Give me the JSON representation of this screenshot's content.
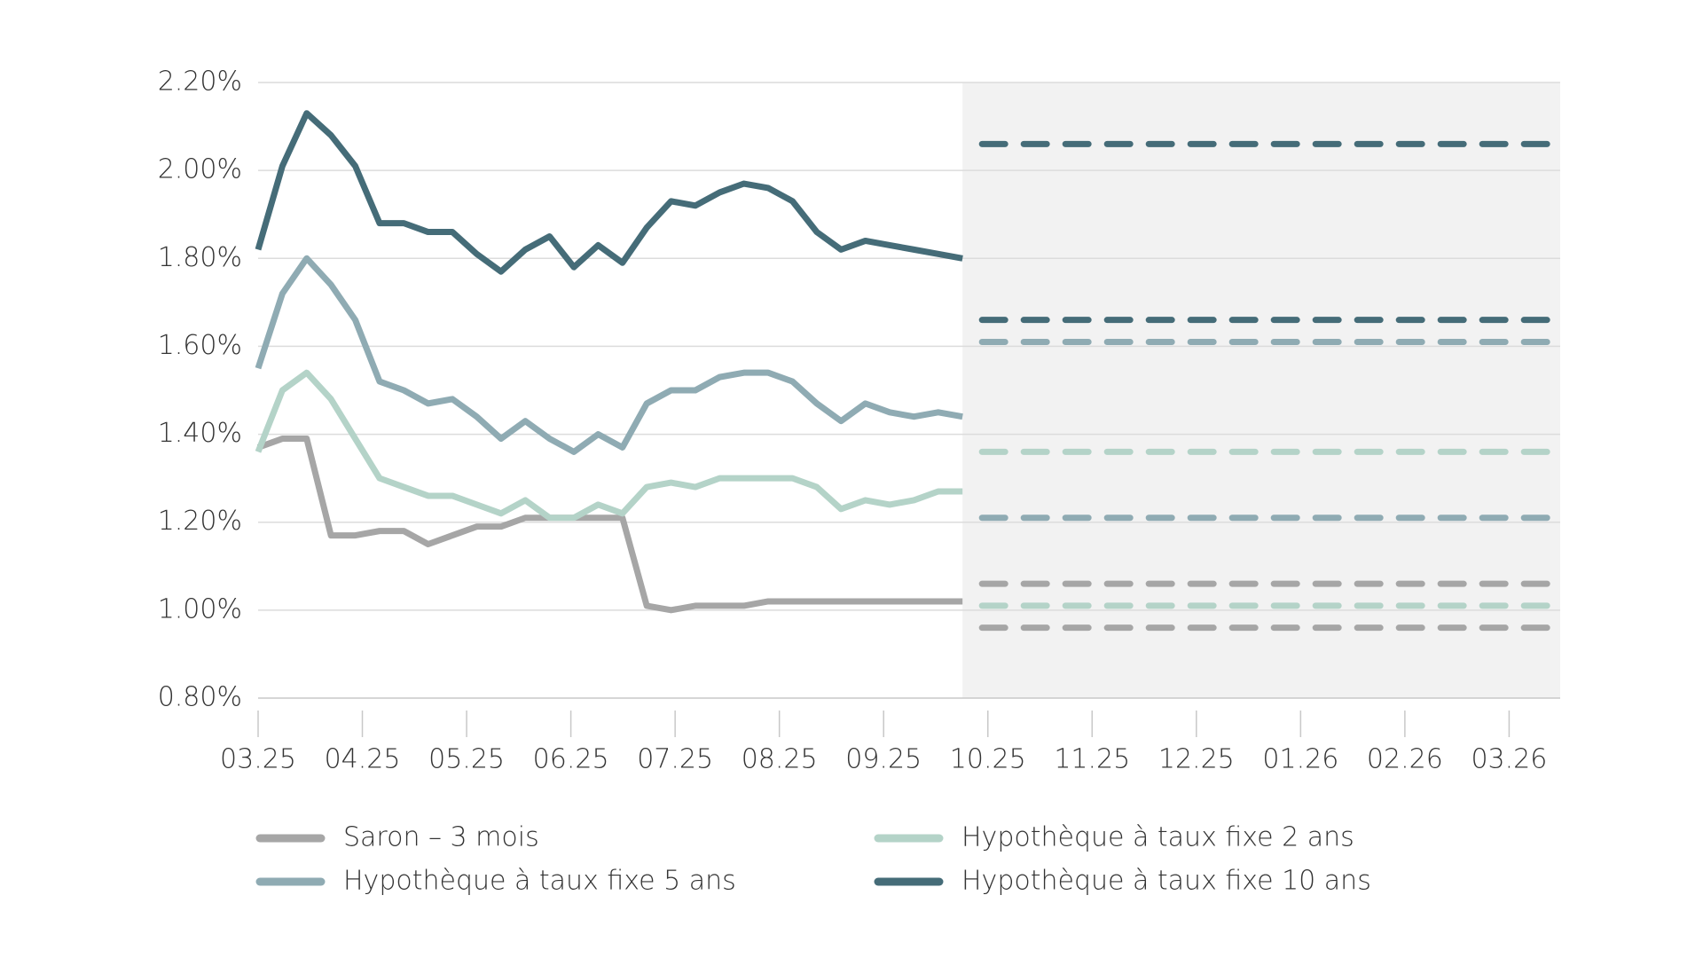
{
  "chart_data": {
    "type": "line",
    "x": [
      0,
      0.233,
      0.466,
      0.699,
      0.932,
      1.165,
      1.398,
      1.631,
      1.864,
      2.097,
      2.33,
      2.563,
      2.796,
      3.029,
      3.262,
      3.495,
      3.728,
      3.961,
      4.194,
      4.427,
      4.66,
      4.893,
      5.126,
      5.359,
      5.592,
      5.825,
      6.058,
      6.291,
      6.524,
      6.757
    ],
    "xlim": [
      0,
      12.49
    ],
    "xticks": [
      {
        "value": 0,
        "label": "03.25"
      },
      {
        "value": 1,
        "label": "04.25"
      },
      {
        "value": 2,
        "label": "05.25"
      },
      {
        "value": 3,
        "label": "06.25"
      },
      {
        "value": 4,
        "label": "07.25"
      },
      {
        "value": 5,
        "label": "08.25"
      },
      {
        "value": 6,
        "label": "09.25"
      },
      {
        "value": 7,
        "label": "10.25"
      },
      {
        "value": 8,
        "label": "11.25"
      },
      {
        "value": 9,
        "label": "12.25"
      },
      {
        "value": 10,
        "label": "01.26"
      },
      {
        "value": 11,
        "label": "02.26"
      },
      {
        "value": 12,
        "label": "03.26"
      }
    ],
    "ylim": [
      0.8,
      2.2
    ],
    "yticks": [
      {
        "value": 0.8,
        "label": "0.80%"
      },
      {
        "value": 1.0,
        "label": "1.00%"
      },
      {
        "value": 1.2,
        "label": "1.20%"
      },
      {
        "value": 1.4,
        "label": "1.40%"
      },
      {
        "value": 1.6,
        "label": "1.60%"
      },
      {
        "value": 1.8,
        "label": "1.80%"
      },
      {
        "value": 2.0,
        "label": "2.00%"
      },
      {
        "value": 2.2,
        "label": "2.20%"
      }
    ],
    "grid": true,
    "series": [
      {
        "name": "Saron – 3 mois",
        "color": "#a6a6a6",
        "forecast_range": [
          0.96,
          1.06
        ],
        "values": [
          1.37,
          1.39,
          1.39,
          1.17,
          1.17,
          1.18,
          1.18,
          1.15,
          1.17,
          1.19,
          1.19,
          1.21,
          1.21,
          1.21,
          1.21,
          1.21,
          1.01,
          1.0,
          1.01,
          1.01,
          1.01,
          1.02,
          1.02,
          1.02,
          1.02,
          1.02,
          1.02,
          1.02,
          1.02,
          1.02
        ]
      },
      {
        "name": "Hypothèque à taux fixe 2 ans",
        "color": "#b4d3c8",
        "forecast_range": [
          1.01,
          1.36
        ],
        "values": [
          1.36,
          1.5,
          1.54,
          1.48,
          1.39,
          1.3,
          1.28,
          1.26,
          1.26,
          1.24,
          1.22,
          1.25,
          1.21,
          1.21,
          1.24,
          1.22,
          1.28,
          1.29,
          1.28,
          1.3,
          1.3,
          1.3,
          1.3,
          1.28,
          1.23,
          1.25,
          1.24,
          1.25,
          1.27,
          1.27
        ]
      },
      {
        "name": "Hypothèque à taux fixe 5 ans",
        "color": "#8fabb3",
        "forecast_range": [
          1.21,
          1.61
        ],
        "values": [
          1.55,
          1.72,
          1.8,
          1.74,
          1.66,
          1.52,
          1.5,
          1.47,
          1.48,
          1.44,
          1.39,
          1.43,
          1.39,
          1.36,
          1.4,
          1.37,
          1.47,
          1.5,
          1.5,
          1.53,
          1.54,
          1.54,
          1.52,
          1.47,
          1.43,
          1.47,
          1.45,
          1.44,
          1.45,
          1.44
        ]
      },
      {
        "name": "Hypothèque à taux fixe 10 ans",
        "color": "#456c78",
        "forecast_range": [
          1.66,
          2.06
        ],
        "values": [
          1.82,
          2.01,
          2.13,
          2.08,
          2.01,
          1.88,
          1.88,
          1.86,
          1.86,
          1.81,
          1.77,
          1.82,
          1.85,
          1.78,
          1.83,
          1.79,
          1.87,
          1.93,
          1.92,
          1.95,
          1.97,
          1.96,
          1.93,
          1.86,
          1.82,
          1.84,
          1.83,
          1.82,
          1.81,
          1.8
        ]
      }
    ]
  }
}
